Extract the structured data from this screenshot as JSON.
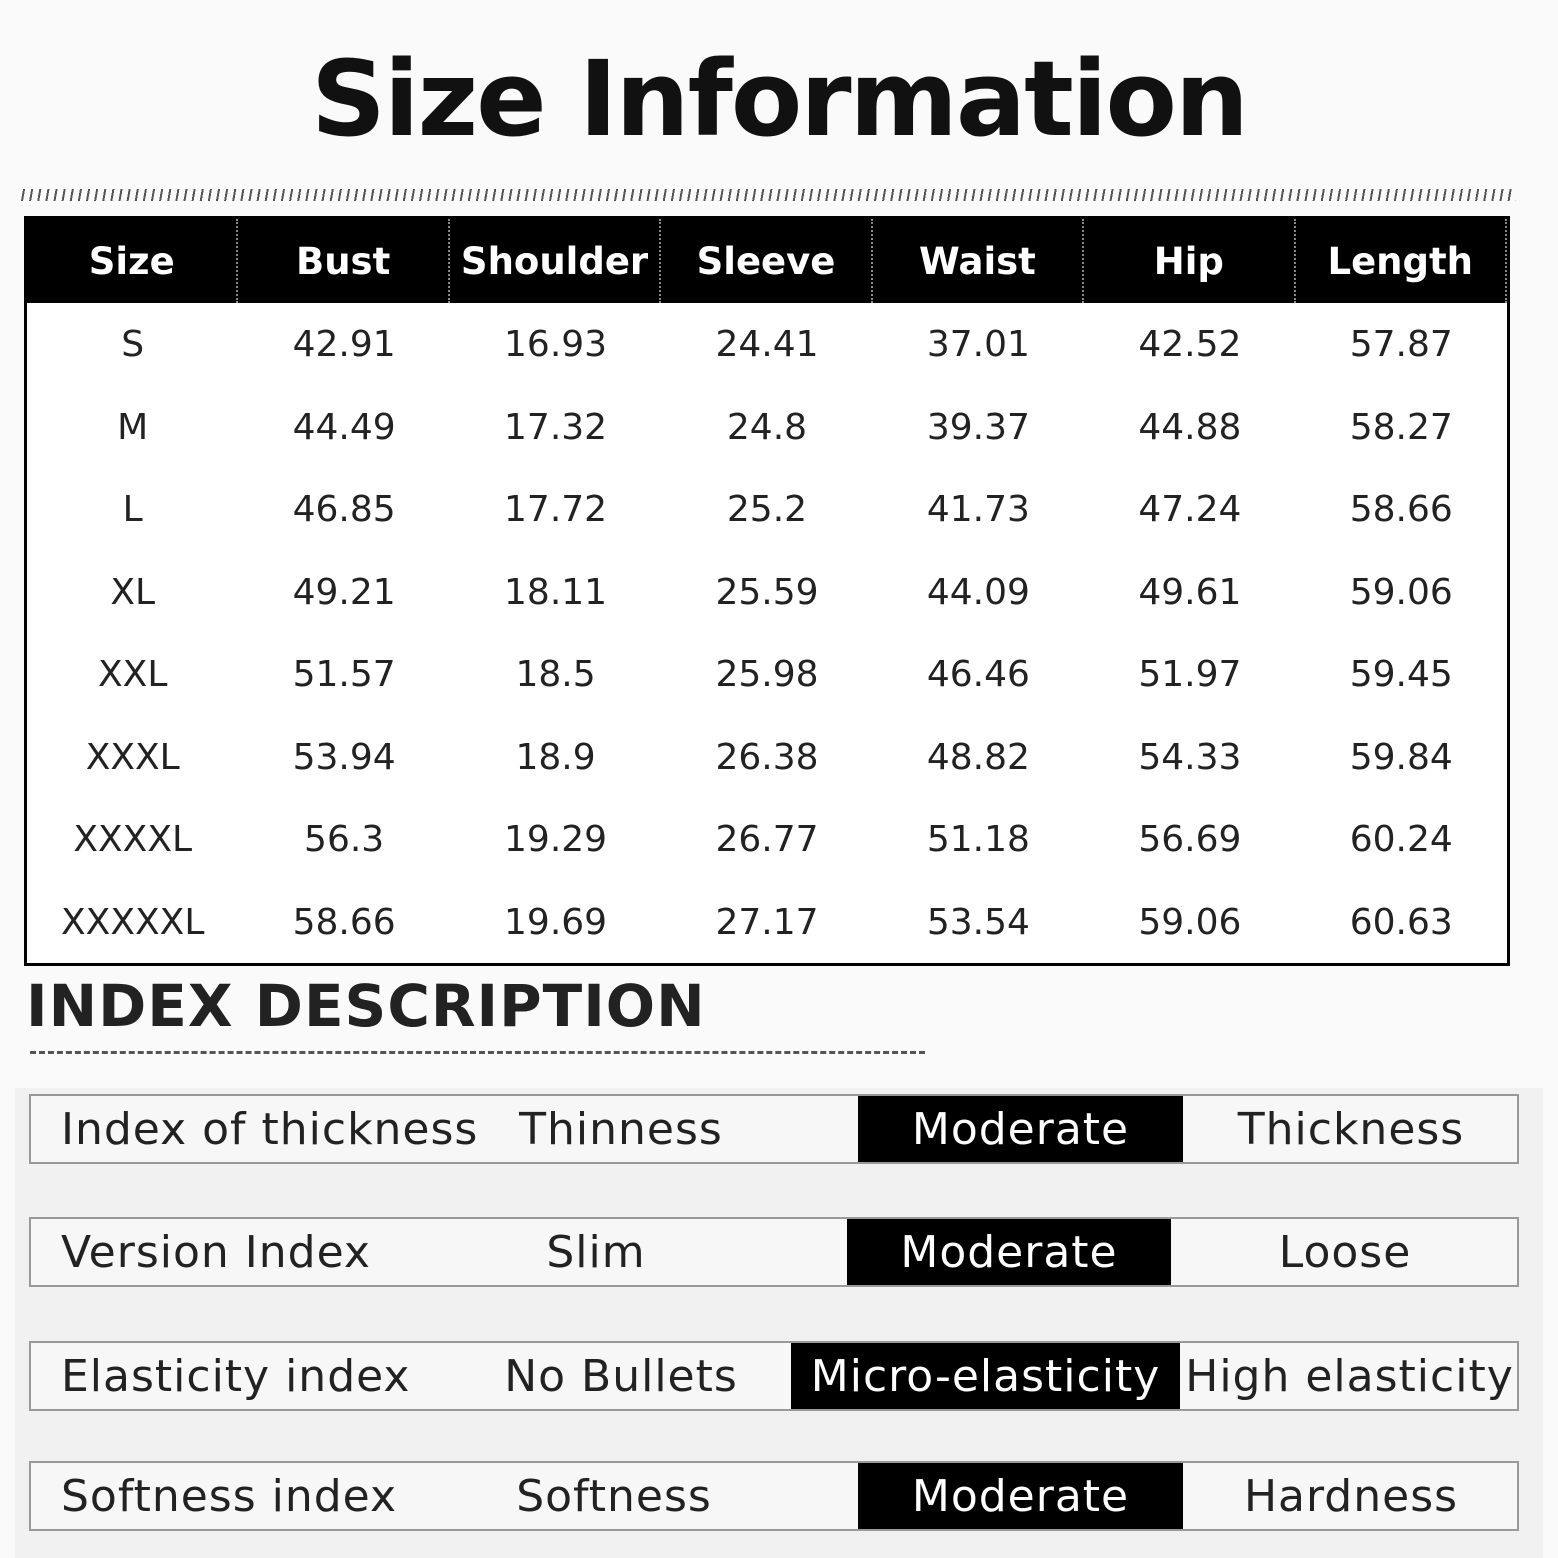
{
  "title": "Size Information",
  "table": {
    "header": [
      "Size",
      "Bust",
      "Shoulder",
      "Sleeve",
      "Waist",
      "Hip",
      "Length"
    ],
    "rows": [
      [
        "S",
        "42.91",
        "16.93",
        "24.41",
        "37.01",
        "42.52",
        "57.87"
      ],
      [
        "M",
        "44.49",
        "17.32",
        "24.8",
        "39.37",
        "44.88",
        "58.27"
      ],
      [
        "L",
        "46.85",
        "17.72",
        "25.2",
        "41.73",
        "47.24",
        "58.66"
      ],
      [
        "XL",
        "49.21",
        "18.11",
        "25.59",
        "44.09",
        "49.61",
        "59.06"
      ],
      [
        "XXL",
        "51.57",
        "18.5",
        "25.98",
        "46.46",
        "51.97",
        "59.45"
      ],
      [
        "XXXL",
        "53.94",
        "18.9",
        "26.38",
        "48.82",
        "54.33",
        "59.84"
      ],
      [
        "XXXXL",
        "56.3",
        "19.29",
        "26.77",
        "51.18",
        "56.69",
        "60.24"
      ],
      [
        "XXXXXL",
        "58.66",
        "19.69",
        "27.17",
        "53.54",
        "59.06",
        "60.63"
      ]
    ]
  },
  "index_description": {
    "title": "INDEX DESCRIPTION",
    "rows": [
      {
        "label": "Index of thickness",
        "options": [
          "Thinness",
          "Moderate",
          "Thickness"
        ],
        "selected": 1
      },
      {
        "label": "Version Index",
        "options": [
          "Slim",
          "Moderate",
          "Loose"
        ],
        "selected": 1
      },
      {
        "label": "Elasticity index",
        "options": [
          "No Bullets",
          "Micro-elasticity",
          "High elasticity"
        ],
        "selected": 1
      },
      {
        "label": "Softness index",
        "options": [
          "Softness",
          "Moderate",
          "Hardness"
        ],
        "selected": 1
      }
    ]
  }
}
